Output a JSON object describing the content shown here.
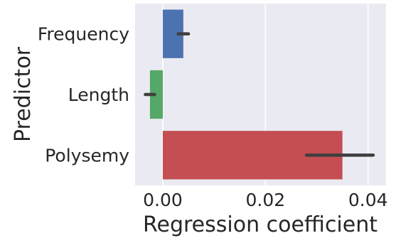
{
  "chart_data": {
    "type": "bar",
    "orientation": "horizontal",
    "categories": [
      "Frequency",
      "Length",
      "Polysemy"
    ],
    "values": [
      0.004,
      -0.0025,
      0.035
    ],
    "error_bars": [
      [
        0.003,
        0.005
      ],
      [
        -0.0034,
        -0.0016
      ],
      [
        0.028,
        0.041
      ]
    ],
    "colors": [
      "#4c72b0",
      "#55a868",
      "#c44e52"
    ],
    "error_bar_color": "#3f3f3f",
    "background_color": "#eaeaf2",
    "grid": true,
    "grid_axis": "x",
    "xlabel": "Regression coefficient",
    "ylabel": "Predictor",
    "xlim": [
      -0.0054,
      0.0435
    ],
    "xticks": [
      0.0,
      0.02,
      0.04
    ],
    "xtick_labels": [
      "0.00",
      "0.02",
      "0.04"
    ],
    "legend": "none"
  }
}
